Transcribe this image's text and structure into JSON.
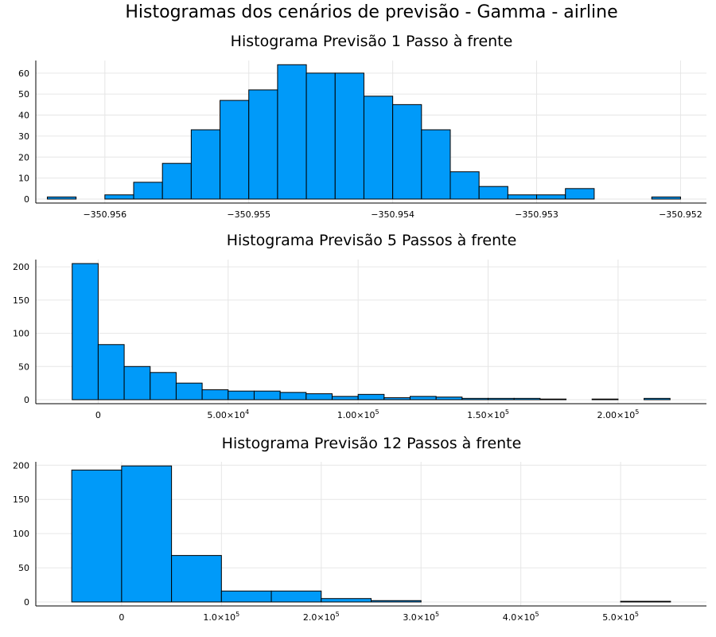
{
  "figure": {
    "suptitle": "Histogramas dos cenários de previsão - Gamma - airline"
  },
  "chart_data": [
    {
      "type": "bar",
      "title": "Histograma Previsão 1 Passo à frente",
      "xlabel": "",
      "ylabel": "",
      "grid": true,
      "bin_edges": [
        -350.9564,
        -350.9562,
        -350.956,
        -350.9558,
        -350.9556,
        -350.9554,
        -350.9552,
        -350.955,
        -350.9548,
        -350.9546,
        -350.9544,
        -350.9542,
        -350.954,
        -350.9538,
        -350.9536,
        -350.9534,
        -350.9532,
        -350.953,
        -350.9528,
        -350.9526,
        -350.9524,
        -350.9522,
        -350.952
      ],
      "values": [
        1,
        0,
        2,
        8,
        17,
        33,
        47,
        52,
        64,
        60,
        60,
        49,
        45,
        33,
        13,
        6,
        2,
        2,
        5,
        0,
        0,
        1
      ],
      "xlim": [
        -350.95648,
        -350.95182
      ],
      "ylim": [
        0,
        66
      ],
      "xticks": [
        -350.956,
        -350.955,
        -350.954,
        -350.953,
        -350.952
      ],
      "xtick_labels": [
        "−350.956",
        "−350.955",
        "−350.954",
        "−350.953",
        "−350.952"
      ],
      "yticks": [
        0,
        10,
        20,
        30,
        40,
        50,
        60
      ],
      "ytick_labels": [
        "0",
        "10",
        "20",
        "30",
        "40",
        "50",
        "60"
      ]
    },
    {
      "type": "bar",
      "title": "Histograma Previsão 5 Passos à frente",
      "xlabel": "",
      "ylabel": "",
      "grid": true,
      "bin_edges": [
        -10000,
        0,
        10000,
        20000,
        30000,
        40000,
        50000,
        60000,
        70000,
        80000,
        90000,
        100000,
        110000,
        120000,
        130000,
        140000,
        150000,
        160000,
        170000,
        180000,
        190000,
        200000,
        210000,
        220000
      ],
      "values": [
        205,
        83,
        50,
        41,
        25,
        15,
        13,
        13,
        11,
        9,
        5,
        8,
        3,
        5,
        4,
        2,
        2,
        2,
        1,
        0,
        1,
        0,
        2
      ],
      "xlim": [
        -24000,
        234000
      ],
      "ylim": [
        0,
        211
      ],
      "xticks": [
        0,
        50000,
        100000,
        150000,
        200000
      ],
      "xtick_labels": [
        {
          "base": "0",
          "exp": ""
        },
        {
          "base": "5.00×10",
          "exp": "4"
        },
        {
          "base": "1.00×10",
          "exp": "5"
        },
        {
          "base": "1.50×10",
          "exp": "5"
        },
        {
          "base": "2.00×10",
          "exp": "5"
        }
      ],
      "yticks": [
        0,
        50,
        100,
        150,
        200
      ],
      "ytick_labels": [
        "0",
        "50",
        "100",
        "150",
        "200"
      ]
    },
    {
      "type": "bar",
      "title": "Histograma Previsão 12 Passos à frente",
      "xlabel": "",
      "ylabel": "",
      "grid": true,
      "bin_edges": [
        -50000,
        0,
        50000,
        100000,
        150000,
        200000,
        250000,
        300000,
        350000,
        400000,
        450000,
        500000,
        550000
      ],
      "values": [
        193,
        199,
        68,
        16,
        16,
        5,
        2,
        0,
        0,
        0,
        0,
        1
      ],
      "xlim": [
        -86000,
        586000
      ],
      "ylim": [
        0,
        205
      ],
      "xticks": [
        0,
        100000,
        200000,
        300000,
        400000,
        500000
      ],
      "xtick_labels": [
        {
          "base": "0",
          "exp": ""
        },
        {
          "base": "1.0×10",
          "exp": "5"
        },
        {
          "base": "2.0×10",
          "exp": "5"
        },
        {
          "base": "3.0×10",
          "exp": "5"
        },
        {
          "base": "4.0×10",
          "exp": "5"
        },
        {
          "base": "5.0×10",
          "exp": "5"
        }
      ],
      "yticks": [
        0,
        50,
        100,
        150,
        200
      ],
      "ytick_labels": [
        "0",
        "50",
        "100",
        "150",
        "200"
      ]
    }
  ]
}
